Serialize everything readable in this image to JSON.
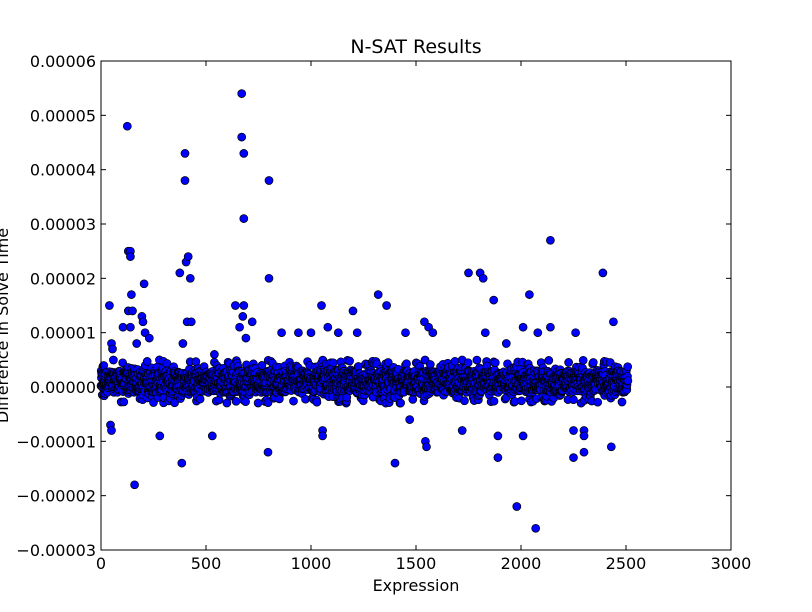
{
  "chart_data": {
    "type": "scatter",
    "title": "N-SAT Results",
    "xlabel": "Expression",
    "ylabel": "Difference in Solve Time",
    "xlim": [
      0,
      3000
    ],
    "ylim": [
      -3e-05,
      6e-05
    ],
    "x_ticks": [
      "0",
      "500",
      "1000",
      "1500",
      "2000",
      "2500",
      "3000"
    ],
    "y_ticks": [
      "−0.00003",
      "−0.00002",
      "−0.00001",
      "0.00000",
      "0.00001",
      "0.00002",
      "0.00003",
      "0.00004",
      "0.00005",
      "0.00006"
    ],
    "grid": false,
    "marker_color": "#0000ff",
    "marker_edge_color": "#000000",
    "dense_band": {
      "x_range": [
        0,
        2510
      ],
      "y_range": [
        -3e-06,
        5e-06
      ],
      "approx_count": 2500
    },
    "points": [
      {
        "x": 40,
        "y": 1.5e-05
      },
      {
        "x": 45,
        "y": -7e-06
      },
      {
        "x": 50,
        "y": -8e-06
      },
      {
        "x": 50,
        "y": 8e-06
      },
      {
        "x": 55,
        "y": 7e-06
      },
      {
        "x": 105,
        "y": 1.1e-05
      },
      {
        "x": 125,
        "y": 4.8e-05
      },
      {
        "x": 130,
        "y": 2.5e-05
      },
      {
        "x": 140,
        "y": 2.5e-05
      },
      {
        "x": 140,
        "y": 2.4e-05
      },
      {
        "x": 130,
        "y": 1.4e-05
      },
      {
        "x": 140,
        "y": 1.1e-05
      },
      {
        "x": 145,
        "y": 1.7e-05
      },
      {
        "x": 150,
        "y": 1.4e-05
      },
      {
        "x": 160,
        "y": -1.8e-05
      },
      {
        "x": 170,
        "y": 8e-06
      },
      {
        "x": 195,
        "y": 1.3e-05
      },
      {
        "x": 200,
        "y": 1.2e-05
      },
      {
        "x": 205,
        "y": 1.9e-05
      },
      {
        "x": 210,
        "y": 1e-05
      },
      {
        "x": 230,
        "y": 9e-06
      },
      {
        "x": 280,
        "y": -9e-06
      },
      {
        "x": 375,
        "y": 2.1e-05
      },
      {
        "x": 385,
        "y": -1.4e-05
      },
      {
        "x": 390,
        "y": 8e-06
      },
      {
        "x": 400,
        "y": 4.3e-05
      },
      {
        "x": 400,
        "y": 3.8e-05
      },
      {
        "x": 405,
        "y": 2.3e-05
      },
      {
        "x": 410,
        "y": 1.2e-05
      },
      {
        "x": 415,
        "y": 2.4e-05
      },
      {
        "x": 425,
        "y": 2e-05
      },
      {
        "x": 430,
        "y": 1.2e-05
      },
      {
        "x": 530,
        "y": -9e-06
      },
      {
        "x": 540,
        "y": 6e-06
      },
      {
        "x": 640,
        "y": 1.5e-05
      },
      {
        "x": 660,
        "y": 1.1e-05
      },
      {
        "x": 670,
        "y": 5.4e-05
      },
      {
        "x": 670,
        "y": 4.6e-05
      },
      {
        "x": 675,
        "y": 1.3e-05
      },
      {
        "x": 680,
        "y": 4.3e-05
      },
      {
        "x": 680,
        "y": 3.1e-05
      },
      {
        "x": 680,
        "y": 1.5e-05
      },
      {
        "x": 690,
        "y": 9e-06
      },
      {
        "x": 720,
        "y": 1.2e-05
      },
      {
        "x": 795,
        "y": -1.2e-05
      },
      {
        "x": 800,
        "y": 3.8e-05
      },
      {
        "x": 800,
        "y": 2e-05
      },
      {
        "x": 860,
        "y": 1e-05
      },
      {
        "x": 940,
        "y": 1e-05
      },
      {
        "x": 1000,
        "y": 1e-05
      },
      {
        "x": 1050,
        "y": 1.5e-05
      },
      {
        "x": 1055,
        "y": -8e-06
      },
      {
        "x": 1055,
        "y": -9e-06
      },
      {
        "x": 1080,
        "y": 1.1e-05
      },
      {
        "x": 1130,
        "y": 1e-05
      },
      {
        "x": 1200,
        "y": 1.4e-05
      },
      {
        "x": 1220,
        "y": 1e-05
      },
      {
        "x": 1320,
        "y": 1.7e-05
      },
      {
        "x": 1360,
        "y": 1.5e-05
      },
      {
        "x": 1400,
        "y": -1.4e-05
      },
      {
        "x": 1450,
        "y": 1e-05
      },
      {
        "x": 1470,
        "y": -6e-06
      },
      {
        "x": 1540,
        "y": 1.2e-05
      },
      {
        "x": 1545,
        "y": -1e-05
      },
      {
        "x": 1550,
        "y": -1.1e-05
      },
      {
        "x": 1560,
        "y": 1.1e-05
      },
      {
        "x": 1580,
        "y": 1e-05
      },
      {
        "x": 1720,
        "y": -8e-06
      },
      {
        "x": 1750,
        "y": 2.1e-05
      },
      {
        "x": 1805,
        "y": 2.1e-05
      },
      {
        "x": 1820,
        "y": 2e-05
      },
      {
        "x": 1830,
        "y": 1e-05
      },
      {
        "x": 1870,
        "y": 1.6e-05
      },
      {
        "x": 1890,
        "y": -9e-06
      },
      {
        "x": 1890,
        "y": -1.3e-05
      },
      {
        "x": 1930,
        "y": 8e-06
      },
      {
        "x": 1980,
        "y": -2.2e-05
      },
      {
        "x": 2010,
        "y": -9e-06
      },
      {
        "x": 2010,
        "y": 1.1e-05
      },
      {
        "x": 2040,
        "y": 1.7e-05
      },
      {
        "x": 2070,
        "y": -2.6e-05
      },
      {
        "x": 2080,
        "y": 1e-05
      },
      {
        "x": 2140,
        "y": 2.7e-05
      },
      {
        "x": 2140,
        "y": 1.1e-05
      },
      {
        "x": 2250,
        "y": -1.3e-05
      },
      {
        "x": 2250,
        "y": -8e-06
      },
      {
        "x": 2260,
        "y": 1e-05
      },
      {
        "x": 2300,
        "y": -8e-06
      },
      {
        "x": 2300,
        "y": -9e-06
      },
      {
        "x": 2300,
        "y": -1.2e-05
      },
      {
        "x": 2390,
        "y": 2.1e-05
      },
      {
        "x": 2430,
        "y": -1.1e-05
      },
      {
        "x": 2440,
        "y": 1.2e-05
      }
    ]
  }
}
